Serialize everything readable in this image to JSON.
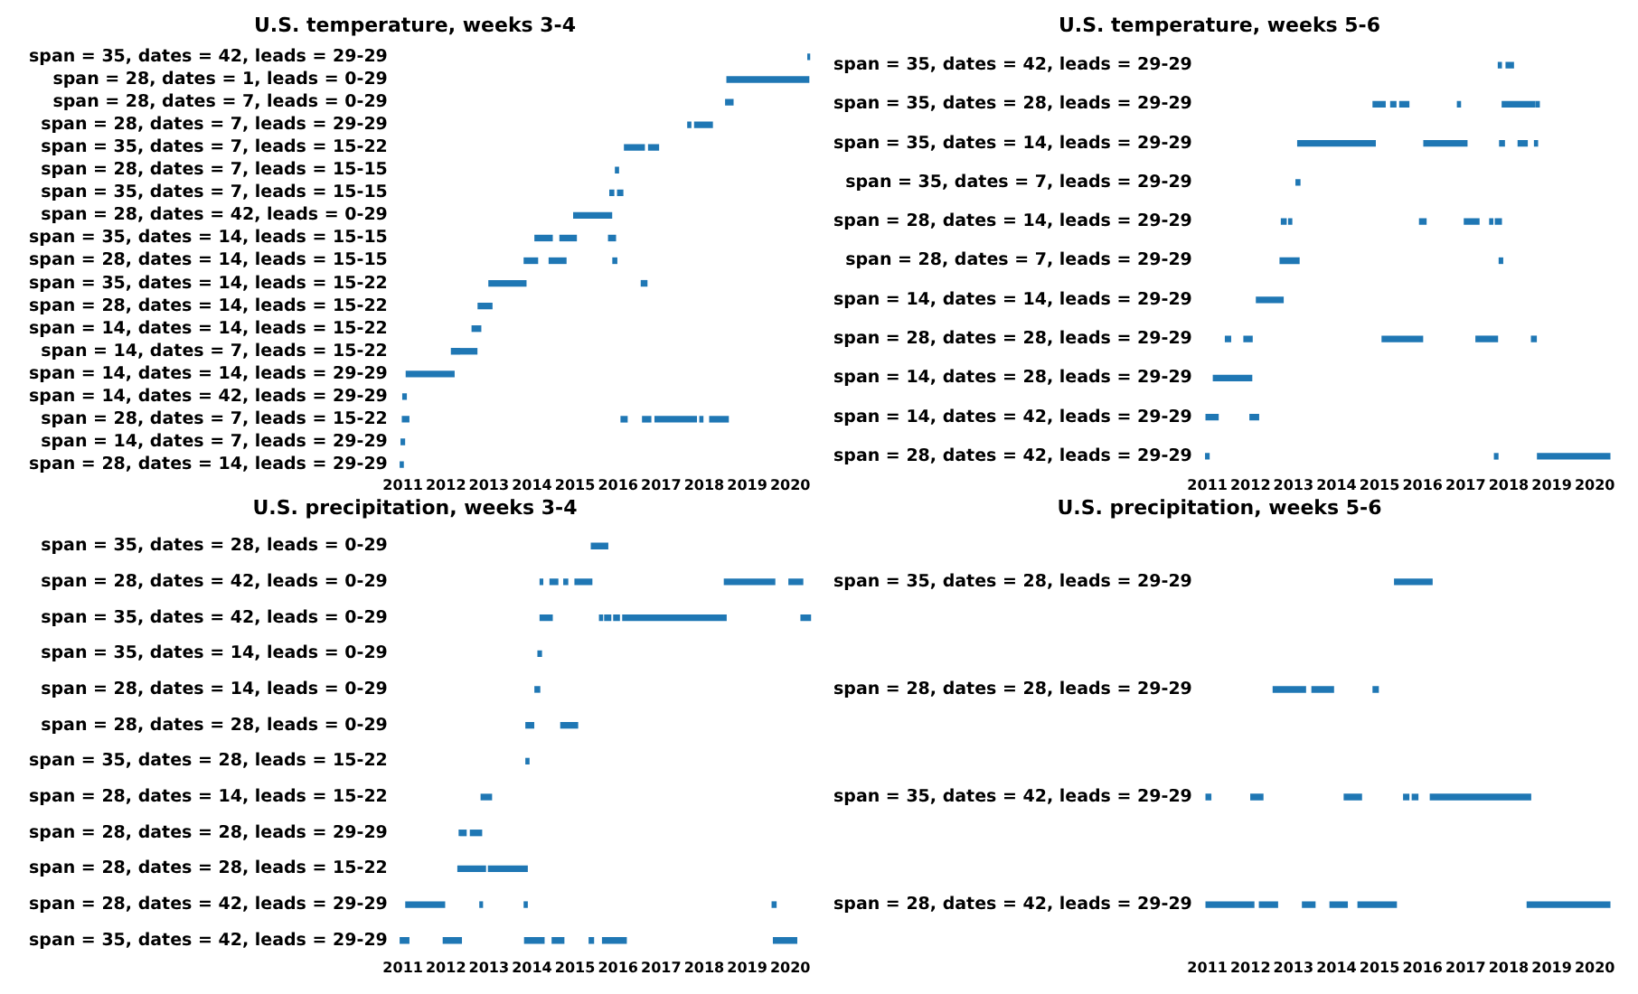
{
  "chart_data": [
    {
      "type": "bar",
      "orientation": "horizontal",
      "title": "U.S. temperature, weeks 3-4",
      "legend": false,
      "grid": false,
      "categories": [
        "span = 35, dates = 42, leads = 29-29",
        "span = 28, dates = 1, leads = 0-29",
        "span = 28, dates = 7, leads = 0-29",
        "span = 28, dates = 7, leads = 29-29",
        "span = 35, dates = 7, leads = 15-22",
        "span = 28, dates = 7, leads = 15-15",
        "span = 35, dates = 7, leads = 15-15",
        "span = 28, dates = 42, leads = 0-29",
        "span = 35, dates = 14, leads = 15-15",
        "span = 28, dates = 14, leads = 15-15",
        "span = 35, dates = 14, leads = 15-22",
        "span = 28, dates = 14, leads = 15-22",
        "span = 14, dates = 14, leads = 15-22",
        "span = 14, dates = 7, leads = 15-22",
        "span = 14, dates = 14, leads = 29-29",
        "span = 14, dates = 42, leads = 29-29",
        "span = 28, dates = 7, leads = 15-22",
        "span = 14, dates = 7, leads = 29-29",
        "span = 28, dates = 14, leads = 29-29"
      ],
      "xlim": [
        2010.9,
        2020.5
      ],
      "xticks": [
        2011,
        2012,
        2013,
        2014,
        2015,
        2016,
        2017,
        2018,
        2019,
        2020
      ],
      "series": [
        {
          "color": "#1f77b4",
          "base": [
            2020.41,
            2018.53,
            2018.5,
            2017.62,
            2016.15,
            2015.94,
            2015.81,
            2014.97,
            2014.07,
            2013.82,
            2013.0,
            2012.75,
            2012.61,
            2012.13,
            2011.08,
            2011.0,
            2010.99,
            2010.96,
            2010.94
          ],
          "values": [
            0.04,
            1.9,
            0.17,
            0.07,
            0.46,
            0.07,
            0.09,
            0.88,
            0.4,
            0.31,
            0.86,
            0.32,
            0.2,
            0.59,
            1.11,
            0.08,
            0.15,
            0.08,
            0.07
          ]
        },
        {
          "color": "#1f77b4",
          "base": [
            null,
            null,
            null,
            2017.78,
            2016.71,
            null,
            2015.99,
            null,
            2014.65,
            2014.4,
            2016.54,
            null,
            null,
            null,
            null,
            null,
            2016.07,
            null,
            null
          ],
          "values": [
            null,
            null,
            null,
            0.41,
            0.23,
            null,
            0.12,
            null,
            0.38,
            0.39,
            0.13,
            null,
            null,
            null,
            null,
            null,
            0.14,
            null,
            null
          ]
        },
        {
          "color": "#1f77b4",
          "base": [
            null,
            null,
            null,
            null,
            null,
            null,
            null,
            null,
            2015.78,
            2015.88,
            null,
            null,
            null,
            null,
            null,
            null,
            2016.57,
            null,
            null
          ],
          "values": [
            null,
            null,
            null,
            null,
            null,
            null,
            null,
            null,
            0.16,
            0.09,
            null,
            null,
            null,
            null,
            null,
            null,
            0.19,
            null,
            null
          ]
        },
        {
          "color": "#1f77b4",
          "base": [
            null,
            null,
            null,
            null,
            null,
            null,
            null,
            null,
            null,
            null,
            null,
            null,
            null,
            null,
            null,
            null,
            2016.86,
            null,
            null
          ],
          "values": [
            null,
            null,
            null,
            null,
            null,
            null,
            null,
            null,
            null,
            null,
            null,
            null,
            null,
            null,
            null,
            null,
            0.96,
            null,
            null
          ]
        },
        {
          "color": "#1f77b4",
          "base": [
            null,
            null,
            null,
            null,
            null,
            null,
            null,
            null,
            null,
            null,
            null,
            null,
            null,
            null,
            null,
            null,
            2017.9,
            null,
            null
          ],
          "values": [
            null,
            null,
            null,
            null,
            null,
            null,
            null,
            null,
            null,
            null,
            null,
            null,
            null,
            null,
            null,
            null,
            0.07,
            null,
            null
          ]
        },
        {
          "color": "#1f77b4",
          "base": [
            null,
            null,
            null,
            null,
            null,
            null,
            null,
            null,
            null,
            null,
            null,
            null,
            null,
            null,
            null,
            null,
            2018.13,
            null,
            null
          ],
          "values": [
            null,
            null,
            null,
            null,
            null,
            null,
            null,
            null,
            null,
            null,
            null,
            null,
            null,
            null,
            null,
            null,
            0.43,
            null,
            null
          ]
        }
      ]
    },
    {
      "type": "bar",
      "orientation": "horizontal",
      "title": "U.S. temperature, weeks 5-6",
      "legend": false,
      "grid": false,
      "categories": [
        "span = 35, dates = 42, leads = 29-29",
        "span = 35, dates = 28, leads = 29-29",
        "span = 35, dates = 14, leads = 29-29",
        "span = 35, dates = 7, leads = 29-29",
        "span = 28, dates = 14, leads = 29-29",
        "span = 28, dates = 7, leads = 29-29",
        "span = 14, dates = 14, leads = 29-29",
        "span = 28, dates = 28, leads = 29-29",
        "span = 14, dates = 28, leads = 29-29",
        "span = 14, dates = 42, leads = 29-29",
        "span = 28, dates = 42, leads = 29-29"
      ],
      "xlim": [
        2010.9,
        2020.5
      ],
      "xticks": [
        2011,
        2012,
        2013,
        2014,
        2015,
        2016,
        2017,
        2018,
        2019,
        2020
      ],
      "series": [
        {
          "color": "#1f77b4",
          "base": [
            2017.76,
            2014.85,
            2013.1,
            2013.06,
            2012.72,
            2012.69,
            2012.14,
            2011.42,
            2011.14,
            2010.97,
            2010.96
          ],
          "values": [
            0.07,
            0.28,
            1.8,
            0.09,
            0.11,
            0.44,
            0.62,
            0.12,
            0.89,
            0.28,
            0.08
          ]
        },
        {
          "color": "#1f77b4",
          "base": [
            2017.94,
            2015.26,
            2016.03,
            null,
            2012.89,
            2017.78,
            null,
            2011.85,
            null,
            2011.99,
            2017.67
          ],
          "values": [
            0.17,
            0.12,
            1.0,
            null,
            0.07,
            0.08,
            null,
            0.19,
            null,
            0.2,
            0.08
          ]
        },
        {
          "color": "#1f77b4",
          "base": [
            null,
            2015.47,
            2017.79,
            null,
            2015.93,
            null,
            null,
            2015.06,
            null,
            null,
            2018.67
          ],
          "values": [
            null,
            0.21,
            0.11,
            null,
            0.15,
            null,
            null,
            0.94,
            null,
            null,
            1.68
          ]
        },
        {
          "color": "#1f77b4",
          "base": [
            null,
            2016.81,
            2018.22,
            null,
            2016.97,
            null,
            null,
            2017.24,
            null,
            null,
            null
          ],
          "values": [
            null,
            0.07,
            0.21,
            null,
            0.34,
            null,
            null,
            0.5,
            null,
            null,
            null
          ]
        },
        {
          "color": "#1f77b4",
          "base": [
            null,
            2017.85,
            2018.6,
            null,
            2017.56,
            null,
            null,
            2018.53,
            null,
            null,
            null
          ],
          "values": [
            null,
            0.76,
            0.07,
            null,
            0.07,
            null,
            null,
            0.11,
            null,
            null,
            null
          ]
        },
        {
          "color": "#1f77b4",
          "base": [
            null,
            2018.64,
            null,
            null,
            2017.69,
            null,
            null,
            null,
            null,
            null,
            null
          ],
          "values": [
            null,
            0.07,
            null,
            null,
            0.14,
            null,
            null,
            null,
            null,
            null,
            null
          ]
        }
      ]
    },
    {
      "type": "bar",
      "orientation": "horizontal",
      "title": "U.S. precipitation, weeks 3-4",
      "legend": false,
      "grid": false,
      "categories": [
        "span = 35, dates = 28, leads = 0-29",
        "span = 28, dates = 42, leads = 0-29",
        "span = 35, dates = 42, leads = 0-29",
        "span = 35, dates = 14, leads = 0-29",
        "span = 28, dates = 14, leads = 0-29",
        "span = 28, dates = 28, leads = 0-29",
        "span = 35, dates = 28, leads = 15-22",
        "span = 28, dates = 14, leads = 15-22",
        "span = 28, dates = 28, leads = 29-29",
        "span = 28, dates = 28, leads = 15-22",
        "span = 28, dates = 42, leads = 29-29",
        "span = 35, dates = 42, leads = 29-29"
      ],
      "xlim": [
        2010.9,
        2020.5
      ],
      "xticks": [
        2011,
        2012,
        2013,
        2014,
        2015,
        2016,
        2017,
        2018,
        2019,
        2020
      ],
      "series": [
        {
          "color": "#1f77b4",
          "base": [
            2015.38,
            2014.19,
            2014.19,
            2014.14,
            2014.07,
            2013.86,
            2013.86,
            2012.82,
            2012.31,
            2012.28,
            2011.07,
            2010.94
          ],
          "values": [
            0.38,
            0.06,
            0.28,
            0.08,
            0.11,
            0.18,
            0.07,
            0.24,
            0.16,
            0.64,
            0.9,
            0.2
          ]
        },
        {
          "color": "#1f77b4",
          "base": [
            null,
            2014.42,
            2015.57,
            null,
            null,
            2014.67,
            null,
            null,
            2012.57,
            2012.99,
            2012.79,
            2011.94
          ],
          "values": [
            null,
            0.18,
            0.07,
            null,
            null,
            0.39,
            null,
            null,
            0.26,
            0.9,
            0.06,
            0.42
          ]
        },
        {
          "color": "#1f77b4",
          "base": [
            null,
            2014.74,
            2015.69,
            null,
            null,
            null,
            null,
            null,
            null,
            null,
            2013.82,
            2013.83
          ],
          "values": [
            null,
            0.09,
            0.14,
            null,
            null,
            null,
            null,
            null,
            null,
            null,
            0.07,
            0.45
          ]
        },
        {
          "color": "#1f77b4",
          "base": [
            null,
            2015.0,
            2015.9,
            null,
            null,
            null,
            null,
            null,
            null,
            null,
            2019.58,
            2014.47
          ],
          "values": [
            null,
            0.39,
            0.13,
            null,
            null,
            null,
            null,
            null,
            null,
            null,
            0.09,
            0.27
          ]
        },
        {
          "color": "#1f77b4",
          "base": [
            null,
            2018.47,
            2016.11,
            null,
            null,
            null,
            null,
            null,
            null,
            null,
            null,
            2015.33
          ],
          "values": [
            null,
            1.17,
            2.4,
            null,
            null,
            null,
            null,
            null,
            null,
            null,
            null,
            0.1
          ]
        },
        {
          "color": "#1f77b4",
          "base": [
            null,
            2019.97,
            2020.25,
            null,
            null,
            null,
            null,
            null,
            null,
            null,
            null,
            2015.64
          ],
          "values": [
            null,
            0.32,
            0.22,
            null,
            null,
            null,
            null,
            null,
            null,
            null,
            null,
            0.55
          ]
        },
        {
          "color": "#1f77b4",
          "base": [
            null,
            null,
            null,
            null,
            null,
            null,
            null,
            null,
            null,
            null,
            null,
            2019.61
          ],
          "values": [
            null,
            null,
            null,
            null,
            null,
            null,
            null,
            null,
            null,
            null,
            null,
            0.54
          ]
        }
      ]
    },
    {
      "type": "bar",
      "orientation": "horizontal",
      "title": "U.S. precipitation, weeks 5-6",
      "legend": false,
      "grid": false,
      "categories": [
        "span = 35, dates = 28, leads = 29-29",
        "span = 28, dates = 28, leads = 29-29",
        "span = 35, dates = 42, leads = 29-29",
        "span = 28, dates = 42, leads = 29-29"
      ],
      "xlim": [
        2010.9,
        2020.5
      ],
      "xticks": [
        2011,
        2012,
        2013,
        2014,
        2015,
        2016,
        2017,
        2018,
        2019,
        2020
      ],
      "series": [
        {
          "color": "#1f77b4",
          "base": [
            2015.35,
            2012.53,
            2010.97,
            2010.97
          ],
          "values": [
            0.87,
            0.75,
            0.11,
            1.11
          ]
        },
        {
          "color": "#1f77b4",
          "base": [
            null,
            2013.43,
            2012.01,
            2012.21
          ],
          "values": [
            null,
            0.5,
            0.28,
            0.42
          ]
        },
        {
          "color": "#1f77b4",
          "base": [
            null,
            2014.85,
            2014.18,
            2013.21
          ],
          "values": [
            null,
            0.12,
            0.4,
            0.29
          ]
        },
        {
          "color": "#1f77b4",
          "base": [
            null,
            null,
            2015.56,
            2013.85
          ],
          "values": [
            null,
            null,
            0.12,
            0.4
          ]
        },
        {
          "color": "#1f77b4",
          "base": [
            null,
            null,
            2015.76,
            2014.5
          ],
          "values": [
            null,
            null,
            0.13,
            0.89
          ]
        },
        {
          "color": "#1f77b4",
          "base": [
            null,
            null,
            2016.18,
            2018.43
          ],
          "values": [
            null,
            null,
            2.33,
            1.92
          ]
        }
      ]
    }
  ]
}
